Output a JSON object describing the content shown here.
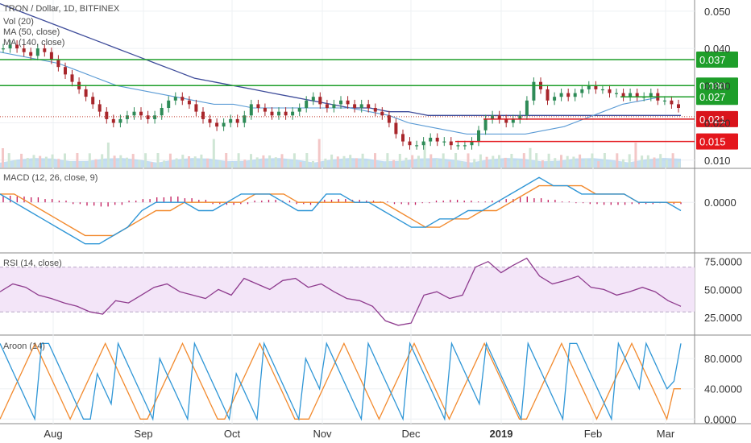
{
  "chart_data": {
    "type": "candlestick-multi-panel",
    "panels": {
      "price": {
        "title": "TRON / Dollar, 1D, BITFINEX",
        "legend": [
          "Vol (20)",
          "MA (50, close)",
          "MA (140, close)"
        ],
        "ylim": [
          0.008,
          0.053
        ],
        "ticks": [
          "0.050",
          "0.040",
          "0.030",
          "0.020",
          "0.010"
        ],
        "tick_values": [
          0.05,
          0.04,
          0.03,
          0.02,
          0.01
        ],
        "close": [
          0.04,
          0.041,
          0.04,
          0.039,
          0.038,
          0.04,
          0.039,
          0.037,
          0.035,
          0.033,
          0.031,
          0.029,
          0.027,
          0.025,
          0.023,
          0.021,
          0.02,
          0.021,
          0.022,
          0.023,
          0.022,
          0.021,
          0.022,
          0.024,
          0.026,
          0.027,
          0.026,
          0.025,
          0.023,
          0.021,
          0.02,
          0.019,
          0.02,
          0.021,
          0.02,
          0.022,
          0.025,
          0.024,
          0.023,
          0.022,
          0.023,
          0.022,
          0.023,
          0.024,
          0.026,
          0.027,
          0.025,
          0.024,
          0.025,
          0.026,
          0.025,
          0.024,
          0.025,
          0.024,
          0.023,
          0.022,
          0.02,
          0.017,
          0.015,
          0.014,
          0.014,
          0.015,
          0.016,
          0.015,
          0.015,
          0.014,
          0.014,
          0.014,
          0.015,
          0.018,
          0.021,
          0.022,
          0.021,
          0.02,
          0.021,
          0.022,
          0.026,
          0.031,
          0.029,
          0.026,
          0.027,
          0.028,
          0.027,
          0.028,
          0.029,
          0.03,
          0.029,
          0.029,
          0.028,
          0.028,
          0.027,
          0.028,
          0.027,
          0.027,
          0.028,
          0.026,
          0.026,
          0.025,
          0.024
        ],
        "ma50": [
          0.039,
          0.038,
          0.037,
          0.036,
          0.034,
          0.032,
          0.03,
          0.029,
          0.028,
          0.027,
          0.026,
          0.025,
          0.025,
          0.024,
          0.024,
          0.024,
          0.024,
          0.024,
          0.024,
          0.023,
          0.022,
          0.02,
          0.019,
          0.018,
          0.017,
          0.017,
          0.017,
          0.017,
          0.018,
          0.019,
          0.021,
          0.023,
          0.025,
          0.026,
          0.027,
          0.027
        ],
        "ma140": [
          0.052,
          0.05,
          0.048,
          0.046,
          0.044,
          0.042,
          0.04,
          0.038,
          0.036,
          0.034,
          0.032,
          0.031,
          0.03,
          0.029,
          0.028,
          0.027,
          0.026,
          0.025,
          0.024,
          0.024,
          0.023,
          0.023,
          0.022,
          0.022,
          0.022,
          0.022,
          0.022,
          0.022,
          0.022,
          0.022,
          0.022,
          0.022,
          0.022,
          0.022,
          0.022,
          0.022
        ],
        "levels": [
          {
            "value": 0.037,
            "label": "0.037",
            "color": "#1e9e2a"
          },
          {
            "value": 0.03,
            "label": "0.030",
            "color": "#1e9e2a"
          },
          {
            "value": 0.027,
            "label": "0.027",
            "color": "#1e9e2a"
          },
          {
            "value": 0.021,
            "label": "0.021",
            "color": "#d9141b"
          },
          {
            "value": 0.015,
            "label": "0.015",
            "color": "#e4161c"
          }
        ]
      },
      "macd": {
        "title": "MACD (12, 26, close, 9)",
        "ylim": [
          -0.006,
          0.004
        ],
        "ticks": [
          "0.0000"
        ],
        "tick_values": [
          0
        ],
        "macd": [
          0.001,
          0.0,
          -0.001,
          -0.002,
          -0.003,
          -0.004,
          -0.005,
          -0.005,
          -0.004,
          -0.003,
          -0.001,
          0.0,
          0.0,
          0.0,
          -0.001,
          -0.001,
          0.0,
          0.001,
          0.001,
          0.001,
          0.0,
          -0.001,
          -0.001,
          0.001,
          0.001,
          0.0,
          0.0,
          -0.001,
          -0.002,
          -0.003,
          -0.003,
          -0.002,
          -0.002,
          -0.001,
          -0.001,
          0.0,
          0.001,
          0.002,
          0.003,
          0.002,
          0.002,
          0.001,
          0.001,
          0.001,
          0.001,
          0.0,
          0.0,
          0.0,
          -0.001
        ],
        "signal": [
          0.001,
          0.001,
          0.0,
          -0.001,
          -0.002,
          -0.003,
          -0.004,
          -0.004,
          -0.004,
          -0.003,
          -0.002,
          -0.001,
          -0.001,
          0.0,
          0.0,
          0.0,
          0.0,
          0.0,
          0.001,
          0.001,
          0.001,
          0.0,
          0.0,
          0.0,
          0.0,
          0.0,
          0.0,
          0.0,
          -0.001,
          -0.002,
          -0.003,
          -0.003,
          -0.002,
          -0.002,
          -0.001,
          -0.001,
          0.0,
          0.001,
          0.002,
          0.002,
          0.002,
          0.002,
          0.001,
          0.001,
          0.001,
          0.0,
          0.0,
          0.0,
          0.0
        ],
        "hist": [
          0.0008,
          0.0007,
          0.0006,
          0.0004,
          0.0002,
          -0.0002,
          -0.0004,
          -0.0005,
          -0.0003,
          0.0002,
          0.0004,
          0.0006,
          0.0007,
          0.0005,
          0.0003,
          -0.0002,
          -0.0003,
          -0.0002,
          0.0002,
          0.0003,
          0.0002,
          -0.0002,
          -0.0003,
          0.0003,
          0.0004,
          0.0003,
          0.0002,
          0.0001,
          -0.0002,
          -0.0003,
          -0.0001,
          0.0002,
          0.0003,
          0.0002,
          0.0001,
          0.0002,
          0.0004,
          0.0007,
          0.0005,
          0.0003,
          0.0001,
          -0.0001,
          -0.0002,
          -0.0003,
          -0.0003,
          -0.0002,
          -0.0002,
          -0.0001,
          -0.0002
        ]
      },
      "rsi": {
        "title": "RSI (14, close)",
        "ylim": [
          10,
          82
        ],
        "ticks": [
          "75.0000",
          "50.0000",
          "25.0000"
        ],
        "tick_values": [
          75,
          50,
          25
        ],
        "band": [
          30,
          70
        ],
        "values": [
          48,
          55,
          52,
          45,
          42,
          38,
          35,
          30,
          28,
          40,
          38,
          45,
          52,
          55,
          48,
          45,
          42,
          50,
          45,
          60,
          55,
          50,
          58,
          60,
          52,
          55,
          48,
          42,
          40,
          35,
          22,
          18,
          20,
          45,
          48,
          42,
          45,
          70,
          75,
          65,
          72,
          78,
          62,
          55,
          58,
          62,
          52,
          50,
          45,
          48,
          52,
          48,
          40,
          35
        ]
      },
      "aroon": {
        "title": "Aroon (14)",
        "ylim": [
          -5,
          110
        ],
        "ticks": [
          "80.0000",
          "40.0000",
          "0.0000"
        ],
        "tick_values": [
          80,
          40,
          0
        ],
        "up": [
          100,
          80,
          60,
          40,
          20,
          0,
          100,
          100,
          80,
          60,
          40,
          20,
          0,
          0,
          60,
          40,
          20,
          100,
          80,
          60,
          40,
          20,
          0,
          80,
          60,
          40,
          20,
          0,
          100,
          80,
          60,
          40,
          20,
          0,
          60,
          40,
          20,
          0,
          100,
          80,
          60,
          40,
          20,
          0,
          80,
          60,
          40,
          100,
          80,
          60,
          40,
          20,
          0,
          100,
          80,
          60,
          40,
          20,
          0,
          100,
          80,
          60,
          40,
          20,
          0,
          100,
          80,
          60,
          40,
          20,
          100,
          80,
          60,
          40,
          20,
          0,
          100,
          80,
          60,
          40,
          20,
          0,
          100,
          100,
          80,
          60,
          40,
          20,
          0,
          100,
          80,
          60,
          40,
          100,
          80,
          60,
          40,
          50,
          100
        ],
        "down": [
          0,
          20,
          40,
          60,
          80,
          100,
          80,
          60,
          40,
          20,
          0,
          20,
          40,
          60,
          80,
          100,
          80,
          60,
          40,
          20,
          0,
          0,
          20,
          40,
          60,
          80,
          100,
          80,
          60,
          40,
          20,
          0,
          0,
          20,
          40,
          60,
          80,
          100,
          80,
          60,
          40,
          20,
          0,
          0,
          0,
          20,
          40,
          60,
          80,
          100,
          80,
          60,
          40,
          20,
          0,
          20,
          40,
          60,
          80,
          100,
          80,
          60,
          40,
          20,
          0,
          20,
          40,
          60,
          80,
          100,
          80,
          60,
          40,
          20,
          0,
          0,
          20,
          40,
          60,
          80,
          100,
          80,
          60,
          40,
          20,
          0,
          20,
          40,
          60,
          80,
          100,
          80,
          60,
          40,
          20,
          0,
          40,
          40
        ]
      }
    },
    "x_labels": [
      "Aug",
      "Sep",
      "Oct",
      "Nov",
      "Dec",
      "2019",
      "Feb",
      "Mar"
    ]
  }
}
